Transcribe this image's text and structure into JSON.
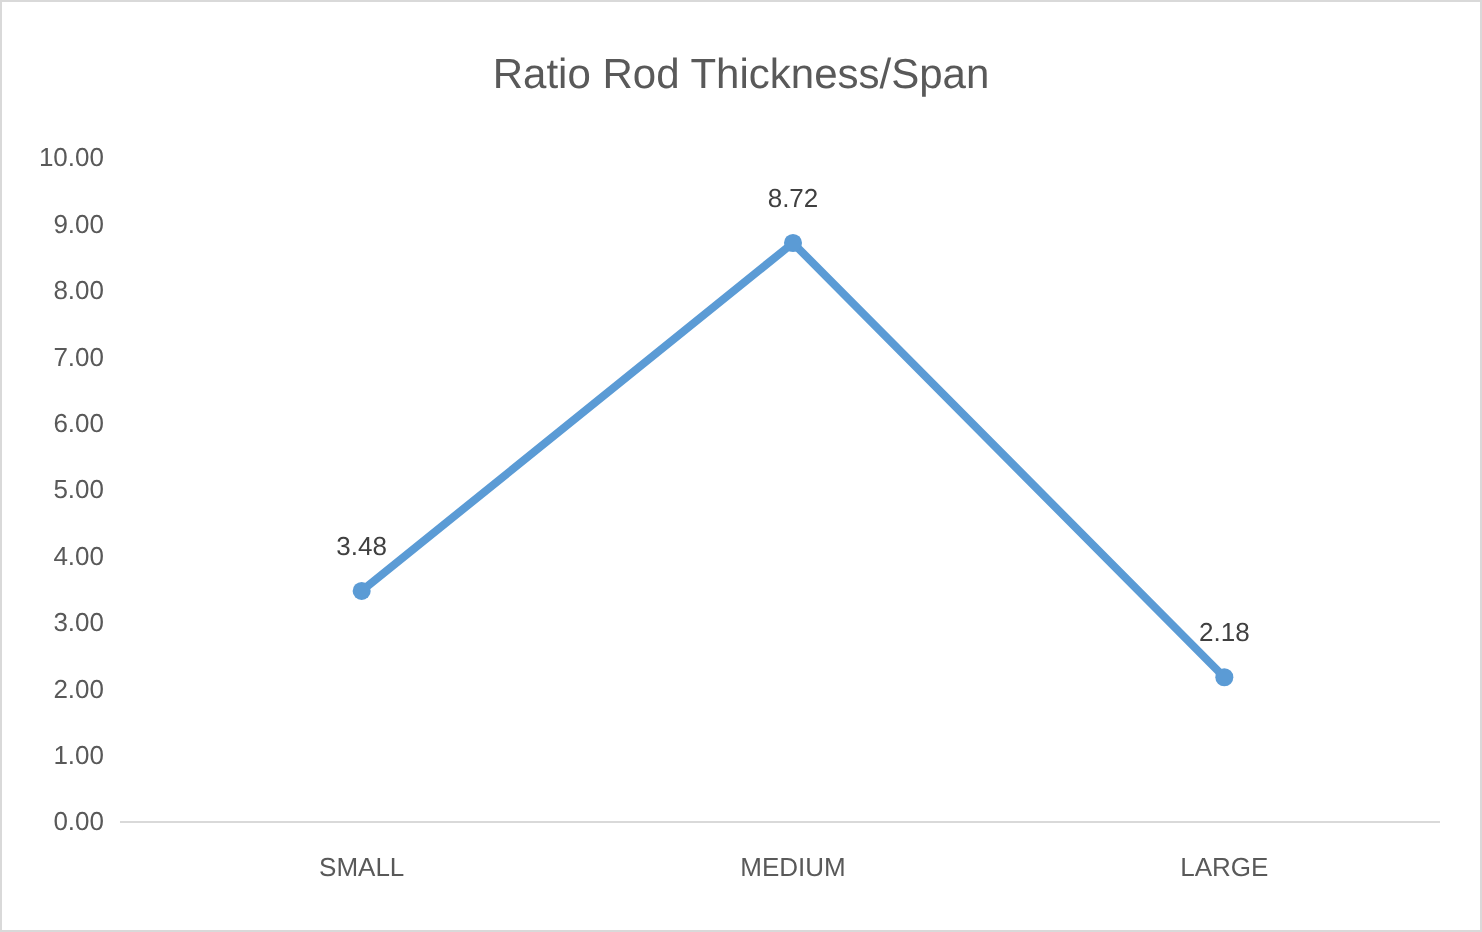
{
  "chart_data": {
    "type": "line",
    "title": "Ratio Rod Thickness/Span",
    "categories": [
      "SMALL",
      "MEDIUM",
      "LARGE"
    ],
    "series": [
      {
        "color": "#5b9bd5",
        "values": [
          3.48,
          8.72,
          2.18
        ]
      }
    ],
    "ylim": [
      0,
      10
    ],
    "yticks": [
      {
        "value": 0,
        "label": "0.00"
      },
      {
        "value": 1,
        "label": "1.00"
      },
      {
        "value": 2,
        "label": "2.00"
      },
      {
        "value": 3,
        "label": "3.00"
      },
      {
        "value": 4,
        "label": "4.00"
      },
      {
        "value": 5,
        "label": "5.00"
      },
      {
        "value": 6,
        "label": "6.00"
      },
      {
        "value": 7,
        "label": "7.00"
      },
      {
        "value": 8,
        "label": "8.00"
      },
      {
        "value": 9,
        "label": "9.00"
      },
      {
        "value": 10,
        "label": "10.00"
      }
    ],
    "grid": false,
    "marker": "circle",
    "line_style": "solid",
    "data_labels": true
  }
}
